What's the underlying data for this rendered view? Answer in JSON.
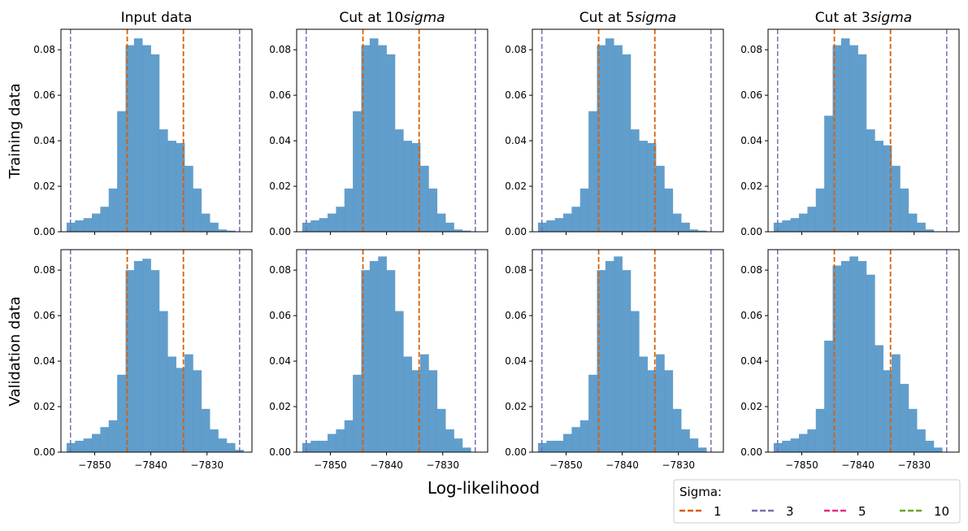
{
  "figure": {
    "xlabel": "Log-likelihood",
    "row_labels": [
      "Training data",
      "Validation data"
    ],
    "column_titles": [
      {
        "prefix": "Input data",
        "italic": ""
      },
      {
        "prefix": "Cut at 10",
        "italic": "sigma"
      },
      {
        "prefix": "Cut at 5",
        "italic": "sigma"
      },
      {
        "prefix": "Cut at 3",
        "italic": "sigma"
      }
    ],
    "x_ticks": [
      -7850,
      -7840,
      -7830
    ],
    "y_ticks": [
      0.0,
      0.02,
      0.04,
      0.06,
      0.08
    ],
    "y_tick_labels": [
      "0.00",
      "0.02",
      "0.04",
      "0.06",
      "0.08"
    ],
    "xlim": [
      -7856,
      -7822
    ],
    "ylim": [
      0,
      0.089
    ],
    "bar_color": "#4a90c4",
    "colors": {
      "sigma1": "#d95f02",
      "sigma3": "#7570b3",
      "sigma5": "#e7298a",
      "sigma10": "#66a61e"
    }
  },
  "legend": {
    "title": "Sigma:",
    "entries": [
      {
        "label": "1",
        "color": "#d95f02"
      },
      {
        "label": "3",
        "color": "#7570b3"
      },
      {
        "label": "5",
        "color": "#e7298a"
      },
      {
        "label": "10",
        "color": "#66a61e"
      }
    ]
  },
  "chart_data": [
    {
      "type": "bar",
      "panel": "Training data / Input data",
      "bin_edges_start": -7855.0,
      "bin_width": 1.5,
      "values": [
        0.004,
        0.005,
        0.006,
        0.008,
        0.011,
        0.019,
        0.053,
        0.082,
        0.085,
        0.082,
        0.078,
        0.045,
        0.04,
        0.039,
        0.029,
        0.019,
        0.008,
        0.004,
        0.001,
        0.0005
      ],
      "vlines": [
        {
          "sigma": 1,
          "x": [
            -7844.2,
            -7834.2
          ]
        },
        {
          "sigma": 3,
          "x": [
            -7854.3,
            -7824.2
          ]
        }
      ]
    },
    {
      "type": "bar",
      "panel": "Training data / Cut at 10sigma",
      "bin_edges_start": -7855.0,
      "bin_width": 1.5,
      "values": [
        0.004,
        0.005,
        0.006,
        0.008,
        0.011,
        0.019,
        0.053,
        0.082,
        0.085,
        0.082,
        0.078,
        0.045,
        0.04,
        0.039,
        0.029,
        0.019,
        0.008,
        0.004,
        0.001,
        0.0005
      ],
      "vlines": [
        {
          "sigma": 1,
          "x": [
            -7844.2,
            -7834.2
          ]
        },
        {
          "sigma": 3,
          "x": [
            -7854.3,
            -7824.2
          ]
        }
      ]
    },
    {
      "type": "bar",
      "panel": "Training data / Cut at 5sigma",
      "bin_edges_start": -7855.0,
      "bin_width": 1.5,
      "values": [
        0.004,
        0.005,
        0.006,
        0.008,
        0.011,
        0.019,
        0.053,
        0.082,
        0.085,
        0.082,
        0.078,
        0.045,
        0.04,
        0.039,
        0.029,
        0.019,
        0.008,
        0.004,
        0.001,
        0.0005
      ],
      "vlines": [
        {
          "sigma": 1,
          "x": [
            -7844.2,
            -7834.2
          ]
        },
        {
          "sigma": 3,
          "x": [
            -7854.3,
            -7824.2
          ]
        }
      ]
    },
    {
      "type": "bar",
      "panel": "Training data / Cut at 3sigma",
      "bin_edges_start": -7855.0,
      "bin_width": 1.5,
      "values": [
        0.004,
        0.005,
        0.006,
        0.008,
        0.011,
        0.019,
        0.051,
        0.082,
        0.085,
        0.082,
        0.078,
        0.045,
        0.04,
        0.038,
        0.029,
        0.019,
        0.008,
        0.004,
        0.001
      ],
      "vlines": [
        {
          "sigma": 1,
          "x": [
            -7844.2,
            -7834.2
          ]
        },
        {
          "sigma": 3,
          "x": [
            -7854.3,
            -7824.2
          ]
        }
      ]
    },
    {
      "type": "bar",
      "panel": "Validation data / Input data",
      "bin_edges_start": -7855.0,
      "bin_width": 1.5,
      "values": [
        0.004,
        0.005,
        0.006,
        0.008,
        0.011,
        0.014,
        0.034,
        0.08,
        0.084,
        0.085,
        0.08,
        0.062,
        0.042,
        0.037,
        0.043,
        0.036,
        0.019,
        0.01,
        0.006,
        0.004,
        0.001
      ],
      "vlines": [
        {
          "sigma": 1,
          "x": [
            -7844.2,
            -7834.2
          ]
        },
        {
          "sigma": 3,
          "x": [
            -7854.3,
            -7824.2
          ]
        }
      ]
    },
    {
      "type": "bar",
      "panel": "Validation data / Cut at 10sigma",
      "bin_edges_start": -7855.0,
      "bin_width": 1.5,
      "values": [
        0.004,
        0.005,
        0.005,
        0.008,
        0.01,
        0.014,
        0.034,
        0.08,
        0.084,
        0.086,
        0.08,
        0.062,
        0.042,
        0.036,
        0.043,
        0.036,
        0.019,
        0.01,
        0.006,
        0.002
      ],
      "vlines": [
        {
          "sigma": 1,
          "x": [
            -7844.2,
            -7834.2
          ]
        },
        {
          "sigma": 3,
          "x": [
            -7854.3,
            -7824.2
          ]
        }
      ]
    },
    {
      "type": "bar",
      "panel": "Validation data / Cut at 5sigma",
      "bin_edges_start": -7855.0,
      "bin_width": 1.5,
      "values": [
        0.004,
        0.005,
        0.005,
        0.008,
        0.011,
        0.014,
        0.034,
        0.08,
        0.084,
        0.086,
        0.08,
        0.062,
        0.042,
        0.036,
        0.043,
        0.036,
        0.019,
        0.01,
        0.006,
        0.002
      ],
      "vlines": [
        {
          "sigma": 1,
          "x": [
            -7844.2,
            -7834.2
          ]
        },
        {
          "sigma": 3,
          "x": [
            -7854.3,
            -7824.2
          ]
        }
      ]
    },
    {
      "type": "bar",
      "panel": "Validation data / Cut at 3sigma",
      "bin_edges_start": -7855.0,
      "bin_width": 1.5,
      "values": [
        0.004,
        0.005,
        0.006,
        0.008,
        0.01,
        0.019,
        0.049,
        0.082,
        0.084,
        0.086,
        0.084,
        0.078,
        0.047,
        0.036,
        0.043,
        0.03,
        0.019,
        0.01,
        0.005,
        0.002
      ],
      "vlines": [
        {
          "sigma": 1,
          "x": [
            -7844.2,
            -7834.2
          ]
        },
        {
          "sigma": 3,
          "x": [
            -7854.3,
            -7824.2
          ]
        }
      ]
    }
  ]
}
